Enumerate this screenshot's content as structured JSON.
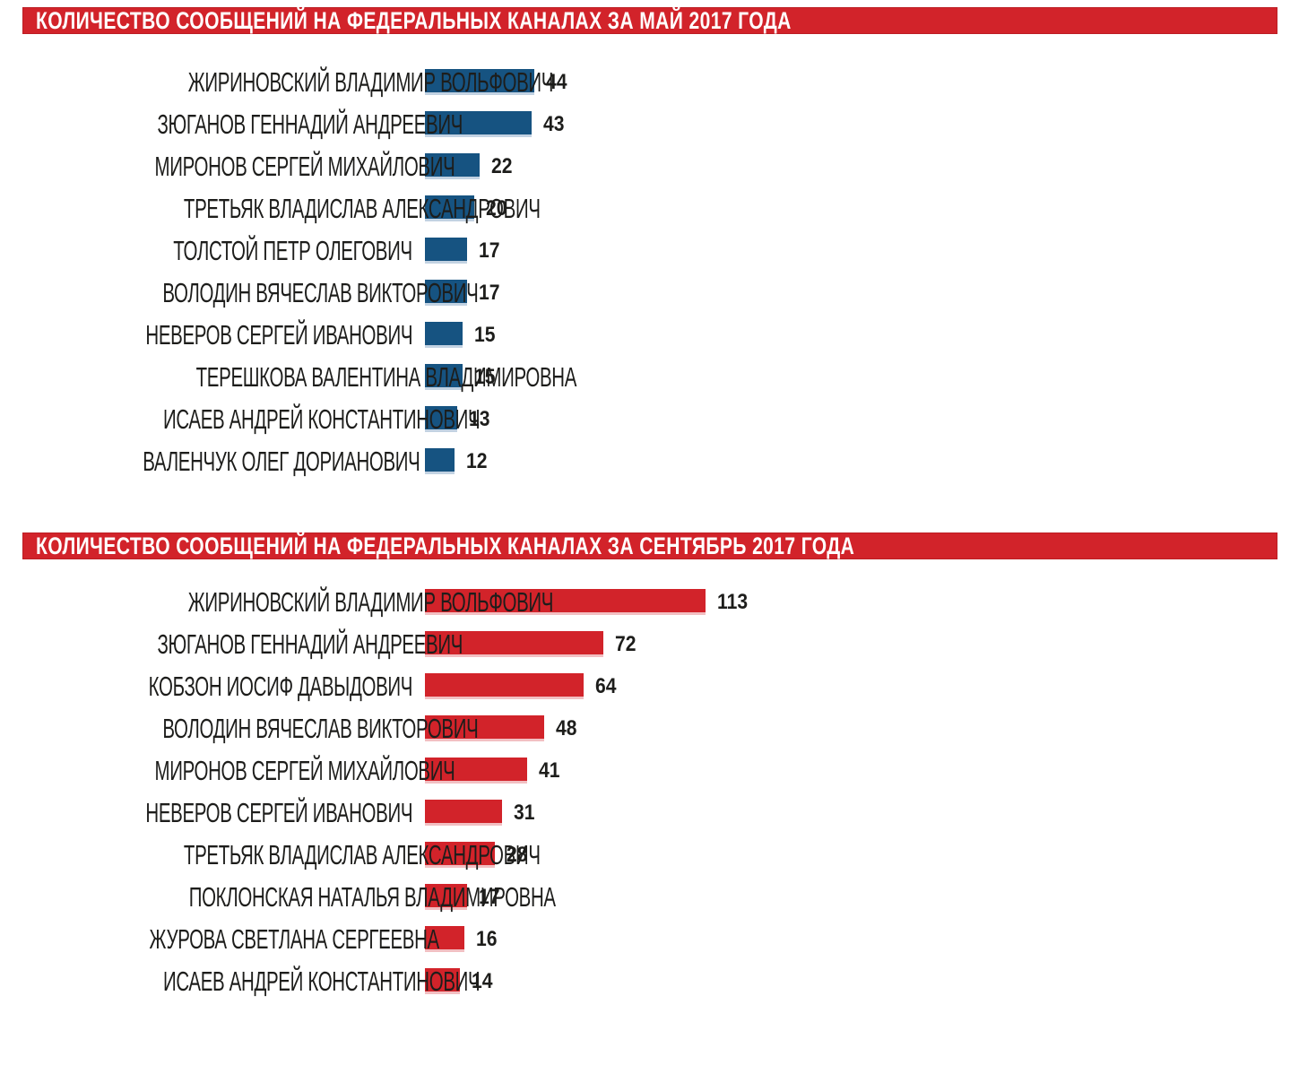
{
  "colors": {
    "banner_bg": "#d2232a",
    "banner_text": "#ffffff",
    "label_text": "#1d1d1b",
    "value_text": "#1d1d1b",
    "background": "#ffffff"
  },
  "chart_data": [
    {
      "type": "bar",
      "orientation": "horizontal",
      "title": "КОЛИЧЕСТВО СООБЩЕНИЙ НА ФЕДЕРАЛЬНЫХ КАНАЛАХ ЗА МАЙ 2017 ГОДА",
      "categories": [
        "ЖИРИНОВСКИЙ ВЛАДИМИР ВОЛЬФОВИЧ",
        "ЗЮГАНОВ ГЕННАДИЙ АНДРЕЕВИЧ",
        "МИРОНОВ СЕРГЕЙ МИХАЙЛОВИЧ",
        "ТРЕТЬЯК ВЛАДИСЛАВ АЛЕКСАНДРОВИЧ",
        "ТОЛСТОЙ ПЕТР ОЛЕГОВИЧ",
        "ВОЛОДИН ВЯЧЕСЛАВ ВИКТОРОВИЧ",
        "НЕВЕРОВ СЕРГЕЙ ИВАНОВИЧ",
        "ТЕРЕШКОВА ВАЛЕНТИНА ВЛАДИМИРОВНА",
        "ИСАЕВ АНДРЕЙ КОНСТАНТИНОВИЧ",
        "ВАЛЕНЧУК ОЛЕГ ДОРИАНОВИЧ"
      ],
      "values": [
        44,
        43,
        22,
        20,
        17,
        17,
        15,
        15,
        13,
        12
      ],
      "value_labels_shown": true,
      "bar_color": "#165381",
      "bar_edge_color": "#c2d2e2",
      "xlim": [
        0,
        120
      ],
      "grid": false,
      "legend": false
    },
    {
      "type": "bar",
      "orientation": "horizontal",
      "title": "КОЛИЧЕСТВО СООБЩЕНИЙ НА ФЕДЕРАЛЬНЫХ КАНАЛАХ ЗА СЕНТЯБРЬ 2017 ГОДА",
      "categories": [
        "ЖИРИНОВСКИЙ ВЛАДИМИР ВОЛЬФОВИЧ",
        "ЗЮГАНОВ ГЕННАДИЙ АНДРЕЕВИЧ",
        "КОБЗОН ИОСИФ ДАВЫДОВИЧ",
        "ВОЛОДИН ВЯЧЕСЛАВ ВИКТОРОВИЧ",
        "МИРОНОВ СЕРГЕЙ МИХАЙЛОВИЧ",
        "НЕВЕРОВ СЕРГЕЙ ИВАНОВИЧ",
        "ТРЕТЬЯК ВЛАДИСЛАВ АЛЕКСАНДРОВИЧ",
        "ПОКЛОНСКАЯ НАТАЛЬЯ ВЛАДИМИРОВНА",
        "ЖУРОВА СВЕТЛАНА СЕРГЕЕВНА",
        "ИСАЕВ АНДРЕЙ КОНСТАНТИНОВИЧ"
      ],
      "values": [
        113,
        72,
        64,
        48,
        41,
        31,
        28,
        17,
        16,
        14
      ],
      "value_labels_shown": true,
      "bar_color": "#d2232a",
      "bar_edge_color": "#f2bfc2",
      "xlim": [
        0,
        120
      ],
      "grid": false,
      "legend": false
    }
  ]
}
